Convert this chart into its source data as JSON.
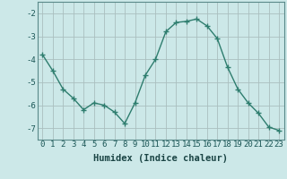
{
  "x": [
    0,
    1,
    2,
    3,
    4,
    5,
    6,
    7,
    8,
    9,
    10,
    11,
    12,
    13,
    14,
    15,
    16,
    17,
    18,
    19,
    20,
    21,
    22,
    23
  ],
  "y": [
    -3.8,
    -4.5,
    -5.3,
    -5.7,
    -6.2,
    -5.9,
    -6.0,
    -6.3,
    -6.8,
    -5.9,
    -4.7,
    -4.0,
    -2.8,
    -2.4,
    -2.35,
    -2.25,
    -2.55,
    -3.1,
    -4.35,
    -5.3,
    -5.9,
    -6.35,
    -6.95,
    -7.1
  ],
  "line_color": "#2e7d6e",
  "marker": "+",
  "marker_size": 4,
  "bg_color": "#cce8e8",
  "grid_color": "#aabfbf",
  "xlabel": "Humidex (Indice chaleur)",
  "ylim": [
    -7.5,
    -1.5
  ],
  "xlim": [
    -0.5,
    23.5
  ],
  "yticks": [
    -7,
    -6,
    -5,
    -4,
    -3,
    -2
  ],
  "xticks": [
    0,
    1,
    2,
    3,
    4,
    5,
    6,
    7,
    8,
    9,
    10,
    11,
    12,
    13,
    14,
    15,
    16,
    17,
    18,
    19,
    20,
    21,
    22,
    23
  ],
  "xlabel_fontsize": 7.5,
  "tick_fontsize": 6.5,
  "spine_color": "#5a8a8a",
  "lw": 1.0
}
